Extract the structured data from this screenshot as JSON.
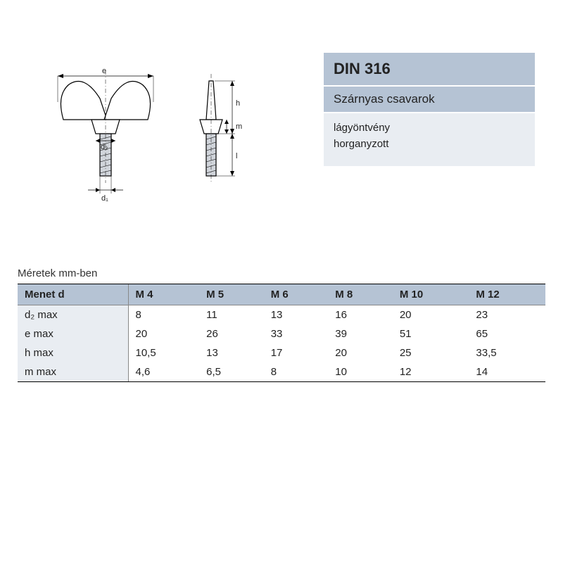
{
  "info": {
    "title": "DIN 316",
    "subtitle": "Szárnyas csavarok",
    "desc1": "lágyöntvény",
    "desc2": "horganyzott"
  },
  "table": {
    "caption": "Méretek mm-ben",
    "header_label": "Menet d",
    "columns": [
      "M 4",
      "M 5",
      "M 6",
      "M 8",
      "M 10",
      "M 12"
    ],
    "rows": [
      {
        "label": "d₂ max",
        "values": [
          "8",
          "11",
          "13",
          "16",
          "20",
          "23"
        ]
      },
      {
        "label": "e max",
        "values": [
          "20",
          "26",
          "33",
          "39",
          "51",
          "65"
        ]
      },
      {
        "label": "h max",
        "values": [
          "10,5",
          "13",
          "17",
          "20",
          "25",
          "33,5"
        ]
      },
      {
        "label": "m max",
        "values": [
          "4,6",
          "6,5",
          "8",
          "10",
          "12",
          "14"
        ]
      }
    ]
  },
  "diagram": {
    "labels": {
      "e": "e",
      "h": "h",
      "m": "m",
      "l": "l",
      "d1": "d₁",
      "d2": "d₂"
    },
    "colors": {
      "stroke": "#000000",
      "dim": "#000000",
      "thread_fill": "#d0d4da",
      "body_fill": "#ffffff"
    }
  },
  "style": {
    "panel_header_bg": "#b5c3d4",
    "panel_desc_bg": "#e9edf2",
    "row_label_bg": "#e9edf2"
  }
}
